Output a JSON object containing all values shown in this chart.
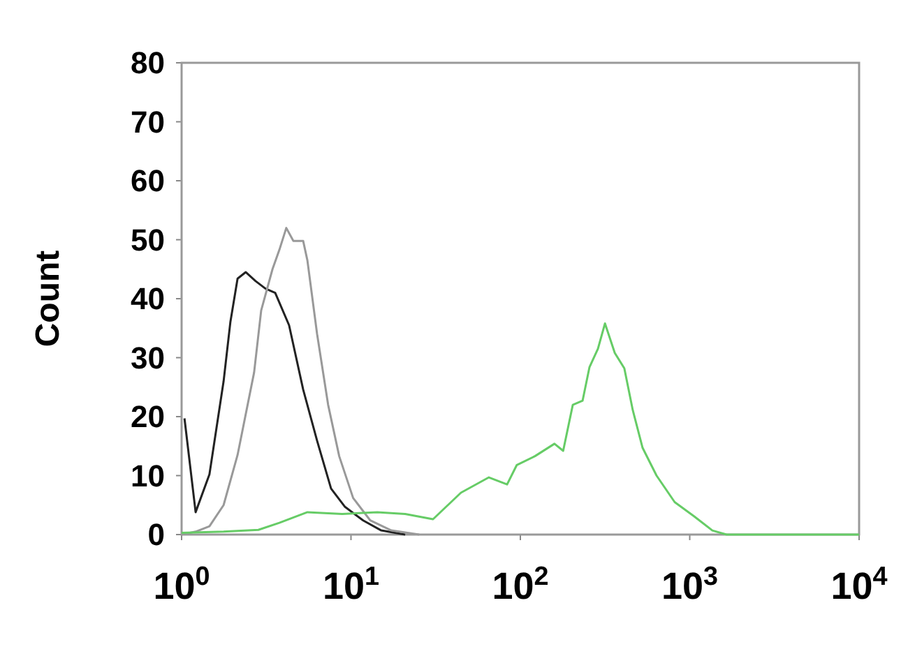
{
  "chart_data": {
    "type": "line",
    "ylabel": "Count",
    "log": "x",
    "grid": false,
    "marker": "none",
    "line_style": "solid",
    "xlim": [
      1,
      10000
    ],
    "ylim": [
      0,
      80
    ],
    "xticks": [
      {
        "value": 1,
        "label": "10$^{0}$"
      },
      {
        "value": 10,
        "label": "10$^{1}$"
      },
      {
        "value": 100,
        "label": "10$^{2}$"
      },
      {
        "value": 1000,
        "label": "10$^{3}$"
      },
      {
        "value": 10000,
        "label": "10$^{4}$"
      }
    ],
    "yticks": [
      0,
      10,
      20,
      30,
      40,
      50,
      60,
      70,
      80
    ],
    "series": [
      {
        "color": "#222222",
        "x": [
          1.04,
          1.21,
          1.46,
          1.77,
          1.94,
          2.14,
          2.39,
          2.73,
          3.13,
          3.57,
          4.31,
          5.22,
          6.31,
          7.63,
          9.22,
          11.8,
          15.1,
          20.9
        ],
        "values": [
          19.7,
          3.8,
          10.2,
          26,
          36,
          43.4,
          44.5,
          43,
          41.7,
          41,
          35.5,
          24.6,
          15.9,
          7.8,
          4.7,
          2.4,
          0.7,
          0
        ]
      },
      {
        "color": "#999999",
        "x": [
          1,
          1.21,
          1.46,
          1.77,
          2.14,
          2.68,
          2.95,
          3.44,
          3.78,
          4.15,
          4.57,
          5.22,
          5.53,
          6.31,
          7.33,
          8.52,
          10.3,
          13,
          17.3,
          25.3
        ],
        "values": [
          0,
          0.5,
          1.4,
          5,
          13.5,
          27.5,
          38,
          45,
          48.3,
          52,
          49.8,
          49.8,
          46.5,
          34,
          22,
          13.3,
          6.2,
          2.4,
          0.7,
          0
        ]
      },
      {
        "color": "#66cc66",
        "x": [
          1,
          1.77,
          2.84,
          3.78,
          5.53,
          8.88,
          14.3,
          20.9,
          30.5,
          44.6,
          65.2,
          83.5,
          95.3,
          122,
          159,
          179,
          204,
          233,
          256,
          287,
          316,
          361,
          411,
          461,
          527,
          637,
          815,
          1060,
          1360,
          1650,
          3520,
          10000
        ],
        "values": [
          0.3,
          0.5,
          0.8,
          2,
          3.8,
          3.5,
          3.8,
          3.5,
          2.6,
          7.1,
          9.7,
          8.5,
          11.8,
          13.3,
          15.4,
          14.2,
          22,
          22.7,
          28.4,
          31.5,
          35.8,
          30.8,
          28.2,
          21.1,
          14.7,
          10,
          5.5,
          3.1,
          0.7,
          0,
          0,
          0
        ]
      }
    ]
  }
}
